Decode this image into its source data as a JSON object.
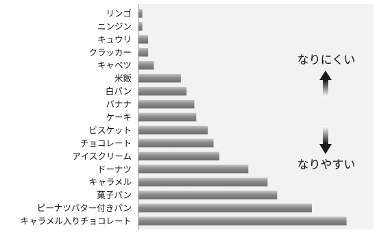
{
  "chart_data": {
    "type": "bar",
    "orientation": "horizontal",
    "categories": [
      "リンゴ",
      "ニンジン",
      "キュウリ",
      "クラッカー",
      "キャベツ",
      "米飯",
      "白パン",
      "バナナ",
      "ケーキ",
      "ビスケット",
      "チョコレート",
      "アイスクリーム",
      "ドーナツ",
      "キャラメル",
      "菓子パン",
      "ピーナツバター付きパン",
      "キャラメル入りチョコレート"
    ],
    "values": [
      2,
      2,
      5,
      5,
      8,
      22,
      25,
      29,
      30,
      36,
      39,
      42,
      57,
      67,
      72,
      90,
      108
    ],
    "xlim": [
      0,
      122
    ],
    "grid": false,
    "annotations": {
      "top": "なりにくい",
      "bottom": "なりやすい"
    },
    "colors": {
      "plot_area": "#f2f2f2",
      "bar_dark": "#6e6e6e",
      "bar_light": "#c4c4c4",
      "arrow": "#1a1a1a"
    }
  }
}
